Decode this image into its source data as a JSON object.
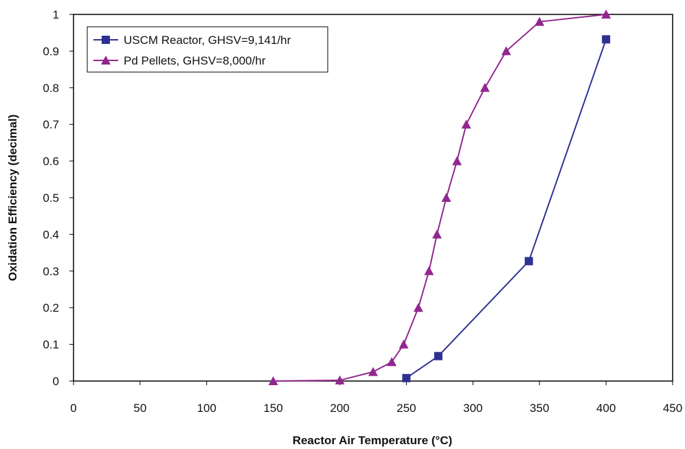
{
  "chart_data": {
    "type": "line",
    "title": "",
    "xlabel": "Reactor Air Temperature (°C)",
    "ylabel": "Oxidation Efficiency (decimal)",
    "xlim": [
      0,
      450
    ],
    "ylim": [
      0,
      1
    ],
    "xticks": [
      "0",
      "50",
      "100",
      "150",
      "200",
      "250",
      "300",
      "350",
      "400",
      "450"
    ],
    "yticks": [
      "0",
      "0.1",
      "0.2",
      "0.3",
      "0.4",
      "0.5",
      "0.6",
      "0.7",
      "0.8",
      "0.9",
      "1"
    ],
    "grid": false,
    "legend_position": "top-left",
    "series": [
      {
        "name": "USCM Reactor, GHSV=9,141/hr",
        "marker": "square",
        "color": "#2e3192",
        "x": [
          250,
          274,
          342,
          400
        ],
        "y": [
          0.008,
          0.068,
          0.327,
          0.932
        ]
      },
      {
        "name": "Pd Pellets, GHSV=8,000/hr",
        "marker": "triangle",
        "color": "#92278f",
        "x": [
          150,
          200,
          225,
          239,
          248,
          259,
          267,
          273,
          280,
          288,
          295,
          309,
          325,
          350,
          400
        ],
        "y": [
          0,
          0.002,
          0.025,
          0.052,
          0.1,
          0.2,
          0.3,
          0.4,
          0.5,
          0.6,
          0.7,
          0.8,
          0.9,
          0.98,
          1.0
        ]
      }
    ]
  }
}
